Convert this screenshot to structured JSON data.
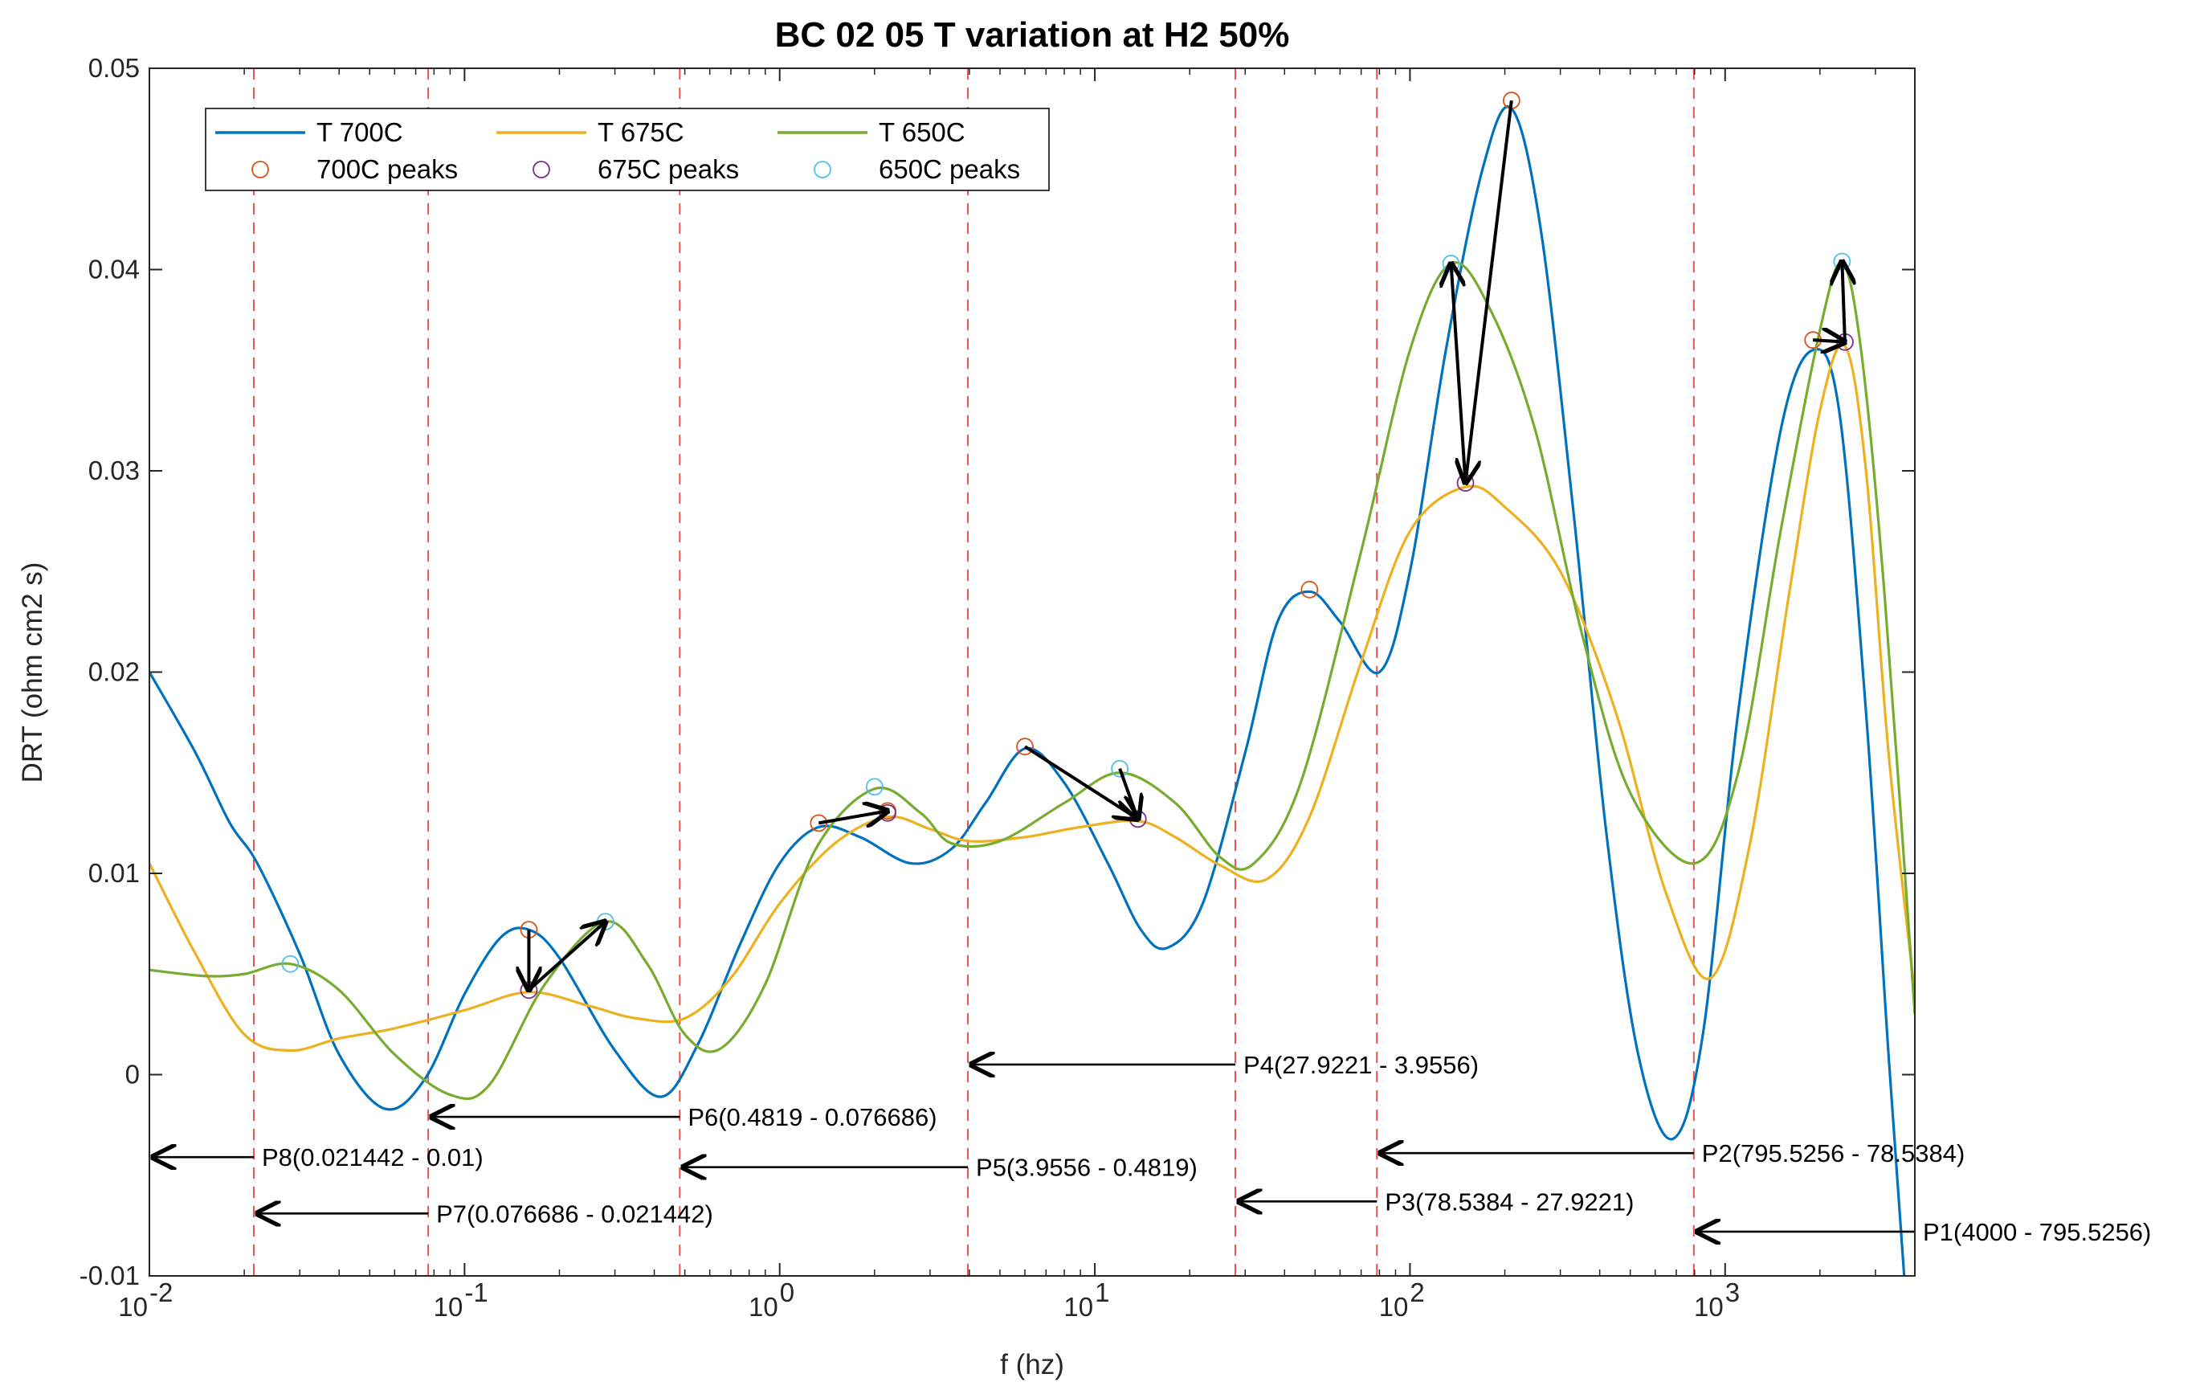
{
  "chart_data": {
    "type": "line",
    "title": "BC 02 05 T variation at H2 50%",
    "xlabel": "f (hz)",
    "ylabel": "DRT (ohm cm2 s)",
    "xscale": "log",
    "xlim": [
      0.01,
      4000
    ],
    "ylim": [
      -0.01,
      0.05
    ],
    "grid": false,
    "legend_position": "top-left",
    "x_ticks": [
      {
        "value": 0.01,
        "base": "10",
        "exp": "-2"
      },
      {
        "value": 0.1,
        "base": "10",
        "exp": "-1"
      },
      {
        "value": 1,
        "base": "10",
        "exp": "0"
      },
      {
        "value": 10,
        "base": "10",
        "exp": "1"
      },
      {
        "value": 100,
        "base": "10",
        "exp": "2"
      },
      {
        "value": 1000,
        "base": "10",
        "exp": "3"
      }
    ],
    "y_ticks": [
      {
        "value": -0.01,
        "label": "-0.01"
      },
      {
        "value": 0,
        "label": "0"
      },
      {
        "value": 0.01,
        "label": "0.01"
      },
      {
        "value": 0.02,
        "label": "0.02"
      },
      {
        "value": 0.03,
        "label": "0.03"
      },
      {
        "value": 0.04,
        "label": "0.04"
      },
      {
        "value": 0.05,
        "label": "0.05"
      }
    ],
    "series": [
      {
        "name": "T 700C",
        "color": "#0072BD",
        "points": [
          [
            0.01,
            0.02
          ],
          [
            0.014,
            0.016
          ],
          [
            0.018,
            0.0125
          ],
          [
            0.022,
            0.0105
          ],
          [
            0.03,
            0.006
          ],
          [
            0.04,
            0.001
          ],
          [
            0.056,
            -0.0017
          ],
          [
            0.075,
            -0.0002
          ],
          [
            0.1,
            0.004
          ],
          [
            0.13,
            0.0068
          ],
          [
            0.16,
            0.0072
          ],
          [
            0.2,
            0.0058
          ],
          [
            0.3,
            0.0012
          ],
          [
            0.42,
            -0.0011
          ],
          [
            0.55,
            0.0015
          ],
          [
            0.75,
            0.0065
          ],
          [
            1.0,
            0.0105
          ],
          [
            1.33,
            0.0123
          ],
          [
            1.8,
            0.0118
          ],
          [
            2.6,
            0.0105
          ],
          [
            3.5,
            0.0112
          ],
          [
            4.5,
            0.0135
          ],
          [
            6.0,
            0.0162
          ],
          [
            8.0,
            0.0145
          ],
          [
            11,
            0.0105
          ],
          [
            14,
            0.0072
          ],
          [
            17,
            0.0063
          ],
          [
            22,
            0.0085
          ],
          [
            30,
            0.016
          ],
          [
            38,
            0.0225
          ],
          [
            48,
            0.024
          ],
          [
            60,
            0.0225
          ],
          [
            80,
            0.02
          ],
          [
            100,
            0.025
          ],
          [
            130,
            0.036
          ],
          [
            170,
            0.045
          ],
          [
            210,
            0.048
          ],
          [
            260,
            0.042
          ],
          [
            330,
            0.028
          ],
          [
            420,
            0.012
          ],
          [
            530,
            0.001
          ],
          [
            680,
            -0.0032
          ],
          [
            850,
            0.002
          ],
          [
            1100,
            0.018
          ],
          [
            1500,
            0.032
          ],
          [
            1900,
            0.036
          ],
          [
            2300,
            0.033
          ],
          [
            2800,
            0.018
          ],
          [
            3300,
            0.001
          ],
          [
            3700,
            -0.01
          ]
        ]
      },
      {
        "name": "T 675C",
        "color": "#EDB120",
        "points": [
          [
            0.01,
            0.0105
          ],
          [
            0.014,
            0.006
          ],
          [
            0.02,
            0.002
          ],
          [
            0.028,
            0.0012
          ],
          [
            0.04,
            0.0018
          ],
          [
            0.06,
            0.0023
          ],
          [
            0.1,
            0.0032
          ],
          [
            0.16,
            0.0041
          ],
          [
            0.25,
            0.0034
          ],
          [
            0.35,
            0.0028
          ],
          [
            0.5,
            0.0028
          ],
          [
            0.7,
            0.0048
          ],
          [
            1.0,
            0.0085
          ],
          [
            1.5,
            0.0115
          ],
          [
            2.2,
            0.0128
          ],
          [
            3.0,
            0.0122
          ],
          [
            4.0,
            0.0116
          ],
          [
            6.0,
            0.0118
          ],
          [
            9.0,
            0.0123
          ],
          [
            13.7,
            0.0126
          ],
          [
            18,
            0.0118
          ],
          [
            25,
            0.0104
          ],
          [
            35,
            0.0097
          ],
          [
            48,
            0.0128
          ],
          [
            70,
            0.0205
          ],
          [
            100,
            0.027
          ],
          [
            150,
            0.0292
          ],
          [
            200,
            0.0282
          ],
          [
            300,
            0.025
          ],
          [
            450,
            0.018
          ],
          [
            650,
            0.009
          ],
          [
            900,
            0.0048
          ],
          [
            1200,
            0.0115
          ],
          [
            1600,
            0.024
          ],
          [
            2000,
            0.033
          ],
          [
            2400,
            0.0362
          ],
          [
            2800,
            0.03
          ],
          [
            3300,
            0.016
          ],
          [
            4000,
            0.004
          ]
        ]
      },
      {
        "name": "T 650C",
        "color": "#77AC30",
        "points": [
          [
            0.01,
            0.0052
          ],
          [
            0.015,
            0.0049
          ],
          [
            0.02,
            0.005
          ],
          [
            0.028,
            0.0055
          ],
          [
            0.04,
            0.0042
          ],
          [
            0.06,
            0.001
          ],
          [
            0.09,
            -0.001
          ],
          [
            0.12,
            -0.0005
          ],
          [
            0.18,
            0.0045
          ],
          [
            0.28,
            0.0076
          ],
          [
            0.38,
            0.0055
          ],
          [
            0.5,
            0.002
          ],
          [
            0.65,
            0.0013
          ],
          [
            0.9,
            0.0045
          ],
          [
            1.3,
            0.0112
          ],
          [
            2.0,
            0.0142
          ],
          [
            2.8,
            0.013
          ],
          [
            3.5,
            0.0115
          ],
          [
            5.0,
            0.0116
          ],
          [
            8.0,
            0.0135
          ],
          [
            12,
            0.015
          ],
          [
            18,
            0.0135
          ],
          [
            25,
            0.0108
          ],
          [
            32,
            0.0105
          ],
          [
            45,
            0.0145
          ],
          [
            70,
            0.026
          ],
          [
            100,
            0.036
          ],
          [
            135,
            0.0403
          ],
          [
            180,
            0.038
          ],
          [
            250,
            0.032
          ],
          [
            350,
            0.022
          ],
          [
            500,
            0.014
          ],
          [
            800,
            0.0105
          ],
          [
            1100,
            0.015
          ],
          [
            1500,
            0.027
          ],
          [
            2000,
            0.037
          ],
          [
            2350,
            0.0403
          ],
          [
            2700,
            0.036
          ],
          [
            3200,
            0.024
          ],
          [
            4000,
            0.003
          ]
        ]
      }
    ],
    "peaks": [
      {
        "name": "700C peaks",
        "color": "#D95319",
        "points": [
          [
            0.16,
            0.0072
          ],
          [
            1.33,
            0.0125
          ],
          [
            6.0,
            0.0163
          ],
          [
            48,
            0.0241
          ],
          [
            210,
            0.0484
          ],
          [
            1900,
            0.0365
          ],
          [
            2.2,
            0.0131
          ]
        ]
      },
      {
        "name": "675C peaks",
        "color": "#7E2F8E",
        "points": [
          [
            0.16,
            0.0042
          ],
          [
            2.2,
            0.013
          ],
          [
            13.7,
            0.0127
          ],
          [
            150,
            0.0294
          ],
          [
            2400,
            0.0364
          ]
        ]
      },
      {
        "name": "650C peaks",
        "color": "#4DBEEE",
        "points": [
          [
            0.028,
            0.0055
          ],
          [
            0.28,
            0.0076
          ],
          [
            2.0,
            0.0143
          ],
          [
            12,
            0.0152
          ],
          [
            135,
            0.0403
          ],
          [
            2350,
            0.0404
          ]
        ]
      }
    ],
    "legend_items": [
      {
        "label": "T 700C",
        "kind": "line",
        "color": "#0072BD"
      },
      {
        "label": "T 675C",
        "kind": "line",
        "color": "#EDB120"
      },
      {
        "label": "T 650C",
        "kind": "line",
        "color": "#77AC30"
      },
      {
        "label": "700C peaks",
        "kind": "marker",
        "color": "#D95319"
      },
      {
        "label": "675C peaks",
        "kind": "marker",
        "color": "#7E2F8E"
      },
      {
        "label": "650C peaks",
        "kind": "marker",
        "color": "#4DBEEE"
      }
    ],
    "boundaries": [
      0.021442,
      0.076686,
      0.4819,
      3.9556,
      27.9221,
      78.5384,
      795.5256,
      4000
    ],
    "intervals": [
      {
        "label": "P1(4000 - 795.5256)",
        "from": 4000,
        "to": 795.5256,
        "y": -0.0078
      },
      {
        "label": "P2(795.5256 - 78.5384)",
        "from": 795.5256,
        "to": 78.5384,
        "y": -0.0039
      },
      {
        "label": "P3(78.5384 - 27.9221)",
        "from": 78.5384,
        "to": 27.9221,
        "y": -0.0063
      },
      {
        "label": "P4(27.9221 - 3.9556)",
        "from": 27.9221,
        "to": 3.9556,
        "y": 0.0005
      },
      {
        "label": "P5(3.9556 - 0.4819)",
        "from": 3.9556,
        "to": 0.4819,
        "y": -0.0046
      },
      {
        "label": "P6(0.4819 - 0.076686)",
        "from": 0.4819,
        "to": 0.076686,
        "y": -0.0021
      },
      {
        "label": "P7(0.076686 - 0.021442)",
        "from": 0.076686,
        "to": 0.021442,
        "y": -0.0069
      },
      {
        "label": "P8(0.021442 - 0.01)",
        "from": 0.021442,
        "to": 0.01,
        "y": -0.0041
      }
    ],
    "shift_arrows": [
      {
        "from": [
          0.16,
          0.0072
        ],
        "to": [
          0.16,
          0.0042
        ]
      },
      {
        "from": [
          0.16,
          0.0042
        ],
        "to": [
          0.28,
          0.0076
        ]
      },
      {
        "from": [
          1.33,
          0.0125
        ],
        "to": [
          2.2,
          0.0131
        ]
      },
      {
        "from": [
          6.0,
          0.0163
        ],
        "to": [
          13.7,
          0.0127
        ]
      },
      {
        "from": [
          12,
          0.0152
        ],
        "to": [
          13.7,
          0.0127
        ]
      },
      {
        "from": [
          210,
          0.0484
        ],
        "to": [
          150,
          0.0294
        ]
      },
      {
        "from": [
          150,
          0.0294
        ],
        "to": [
          135,
          0.0403
        ]
      },
      {
        "from": [
          1900,
          0.0365
        ],
        "to": [
          2400,
          0.0364
        ]
      },
      {
        "from": [
          2400,
          0.0364
        ],
        "to": [
          2350,
          0.0404
        ]
      }
    ]
  }
}
